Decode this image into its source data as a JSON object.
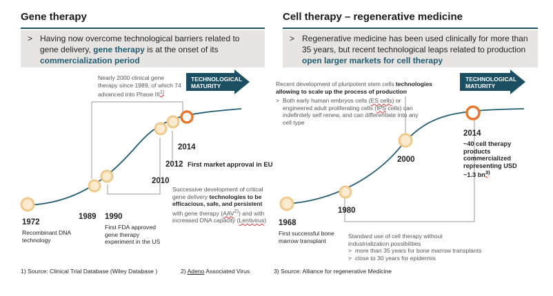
{
  "left": {
    "title": "Gene therapy",
    "summary_pre": "Having now overcome technological barriers related to gene delivery, ",
    "summary_hl1": "gene therapy",
    "summary_mid": " is at the onset of its ",
    "summary_hl2": "commercialization period",
    "maturity": [
      "TECHNOLOGICAL",
      "MATURITY"
    ],
    "callout_top": "Nearly 2000 clinical gene therapy since 1989, of which 74 advanced into Phase III",
    "callout_top_sup": "1)",
    "callout_bottom_pre": "Successive development of critical gene delivery ",
    "callout_bottom_bold": "technologies to be efficacious, safe, and persistent",
    "callout_bottom_mid": " with gene therapy (",
    "callout_bottom_aav": "AAV",
    "callout_bottom_aav_sup": "2)",
    "callout_bottom_end": ") and with increased DNA capacity (",
    "callout_bottom_lenti": "Lentivirus",
    "callout_bottom_close": ")",
    "milestones": {
      "y1972": "1972",
      "d1972": "Recombinant DNA technology",
      "y1989": "1989",
      "y1990": "1990",
      "d1990": "First FDA approved gene therapy experiment in the US",
      "y2010": "2010",
      "y2012": "2012",
      "d2012": "First market approval in EU",
      "y2014": "2014"
    }
  },
  "right": {
    "title": "Cell therapy – regenerative medicine",
    "summary_pre": "Regenerative medicine has been used clinically for more than 35 years, but recent technological leaps related to production ",
    "summary_hl": "open larger markets for cell therapy",
    "maturity": [
      "TECHNOLOGICAL",
      "MATURITY"
    ],
    "callout_top_pre": "Recent development of pluripotent stem cells ",
    "callout_top_bold1": "technologies",
    "callout_top_bold2": "allowing to scale up the process of production",
    "callout_top_bullet_pre": "Both early human embryos cells (",
    "callout_top_es": "ES cells",
    "callout_top_bullet_mid": ") or engineered adult proliferating cells (",
    "callout_top_ips": "IPS",
    "callout_top_bullet_end": " cells) can indefinitely self renew, and can differentiate into any cell type",
    "callout_bottom_line1": "Standard use of cell therapy without",
    "callout_bottom_line2": "industrialization possibilities",
    "callout_bottom_b1": "more than 35 years for bone marrow transplants",
    "callout_bottom_b2": "close to 30 years for epidermis",
    "milestones": {
      "y1968": "1968",
      "d1968": "First successful bone marrow transplant",
      "y1980": "1980",
      "y2000": "2000",
      "y2014": "2014",
      "d2014": "~40 cell therapy products commercialized representing USD ~1.3 bn",
      "d2014_sup": "3)"
    }
  },
  "footnotes": {
    "f1": "1) Source: Clinical Trial Database (Wiley Database )",
    "f2_pre": "2) ",
    "f2_u": "Adeno",
    "f2_end": " Associated Virus",
    "f3": "3) Source: Alliance for regenerative Medicine"
  },
  "colors": {
    "accent": "#1f5c73",
    "node_fill": "#fbeacf",
    "node_stroke": "#f0c98a",
    "node_active": "#e8772e",
    "box": "#e8e4e1"
  }
}
